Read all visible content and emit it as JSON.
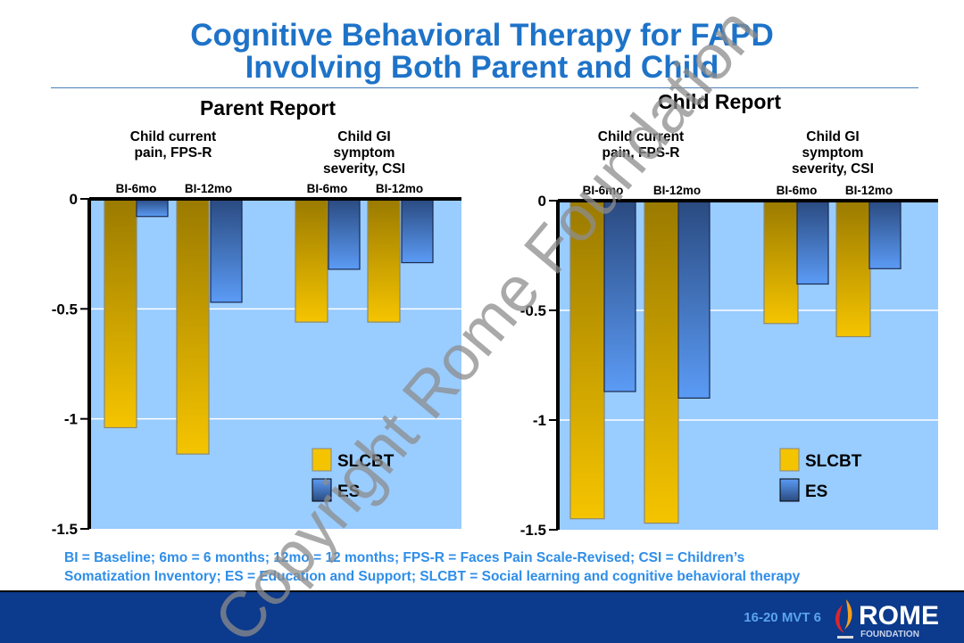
{
  "title_line1": "Cognitive Behavioral Therapy for FAPD",
  "title_line2": "Involving Both Parent and Child",
  "footnote_line1": "BI = Baseline; 6mo = 6 months; 12mo = 12 months; FPS-R = Faces Pain Scale-Revised; CSI = Children’s",
  "footnote_line2": "Somatization Inventory; ES = Education and Support; SLCBT = Social learning and cognitive behavioral therapy",
  "slide_code": "16-20  MVT 6",
  "logo": {
    "name": "ROME",
    "sub": "FOUNDATION"
  },
  "watermark": "Copyright Rome Foundation",
  "colors": {
    "slcbt": "#f5c400",
    "es": "#5b9bf5",
    "plot_bg": "#99ccff",
    "title": "#1e73c8",
    "footer": "#0c3a8c"
  },
  "chart_data": [
    {
      "type": "bar",
      "title": "Parent Report",
      "groups": [
        "Child current pain, FPS-R",
        "Child GI symptom severity, CSI"
      ],
      "categories": [
        "BI-6mo",
        "BI-12mo",
        "BI-6mo",
        "BI-12mo"
      ],
      "series": [
        {
          "name": "SLCBT",
          "values": [
            -1.04,
            -1.16,
            -0.56,
            -0.56
          ]
        },
        {
          "name": "ES",
          "values": [
            -0.08,
            -0.47,
            -0.32,
            -0.29
          ]
        }
      ],
      "ylim": [
        -1.5,
        0
      ],
      "yticks": [
        "0",
        "-0.5",
        "-1",
        "-1.5"
      ],
      "grid": true,
      "legend": "bottom-right"
    },
    {
      "type": "bar",
      "title": "Child Report",
      "groups": [
        "Child current pain, FPS-R",
        "Child GI symptom severity, CSI"
      ],
      "categories": [
        "BI-6mo",
        "BI-12mo",
        "BI-6mo",
        "BI-12mo"
      ],
      "series": [
        {
          "name": "SLCBT",
          "values": [
            -1.45,
            -1.47,
            -0.56,
            -0.62
          ]
        },
        {
          "name": "ES",
          "values": [
            -0.87,
            -0.9,
            -0.38,
            -0.31
          ]
        }
      ],
      "ylim": [
        -1.5,
        0
      ],
      "yticks": [
        "0",
        "-0.5",
        "-1",
        "-1.5"
      ],
      "grid": true,
      "legend": "bottom-right"
    }
  ]
}
